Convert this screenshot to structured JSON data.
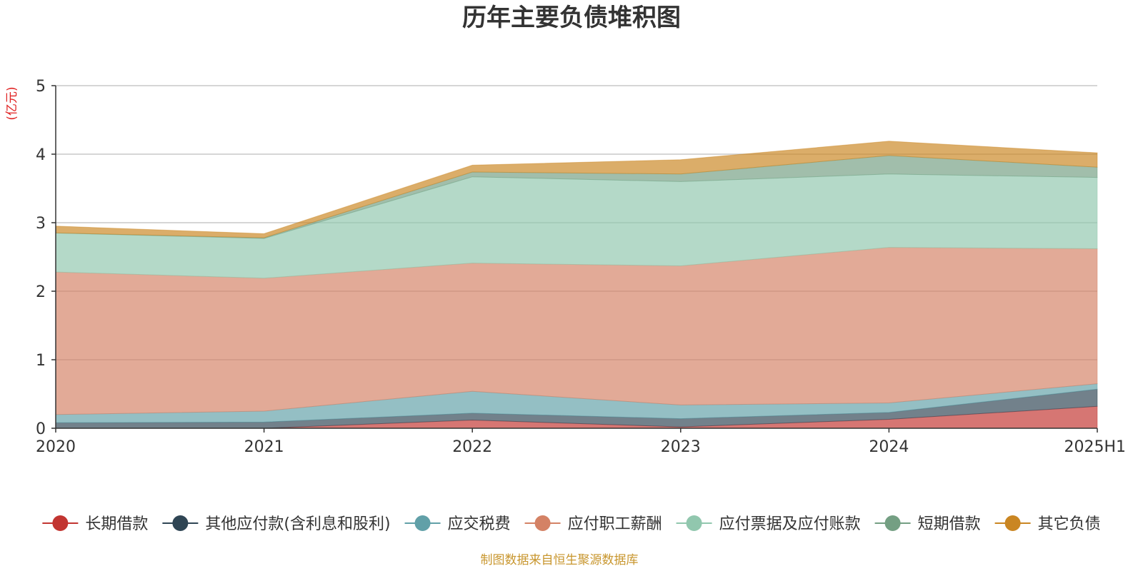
{
  "chart_data": {
    "type": "area",
    "stacked": true,
    "title": "历年主要负债堆积图",
    "unit_label": "(亿元)",
    "categories": [
      "2020",
      "2021",
      "2022",
      "2023",
      "2024",
      "2025H1"
    ],
    "ylim": [
      0,
      5
    ],
    "yticks": [
      "0",
      "1",
      "2",
      "3",
      "4",
      "5"
    ],
    "grid": true,
    "legend_position": "bottom",
    "series": [
      {
        "name": "长期借款",
        "color": "#c23531",
        "values": [
          0.0,
          0.0,
          0.12,
          0.02,
          0.13,
          0.32
        ]
      },
      {
        "name": "其他应付款(含利息和股利)",
        "color": "#2f4554",
        "values": [
          0.08,
          0.09,
          0.1,
          0.12,
          0.1,
          0.25
        ]
      },
      {
        "name": "应交税费",
        "color": "#61a0a8",
        "values": [
          0.12,
          0.16,
          0.32,
          0.2,
          0.14,
          0.08
        ]
      },
      {
        "name": "应付职工薪酬",
        "color": "#d48265",
        "values": [
          2.08,
          1.94,
          1.87,
          2.03,
          2.27,
          1.97
        ]
      },
      {
        "name": "应付票据及应付账款",
        "color": "#91c7ae",
        "values": [
          0.57,
          0.58,
          1.26,
          1.23,
          1.07,
          1.04
        ]
      },
      {
        "name": "短期借款",
        "color": "#749f83",
        "values": [
          0.0,
          0.01,
          0.07,
          0.11,
          0.27,
          0.15
        ]
      },
      {
        "name": "其它负债",
        "color": "#ca8622",
        "values": [
          0.1,
          0.06,
          0.1,
          0.21,
          0.21,
          0.21
        ]
      }
    ]
  },
  "source_text": "制图数据来自恒生聚源数据库"
}
